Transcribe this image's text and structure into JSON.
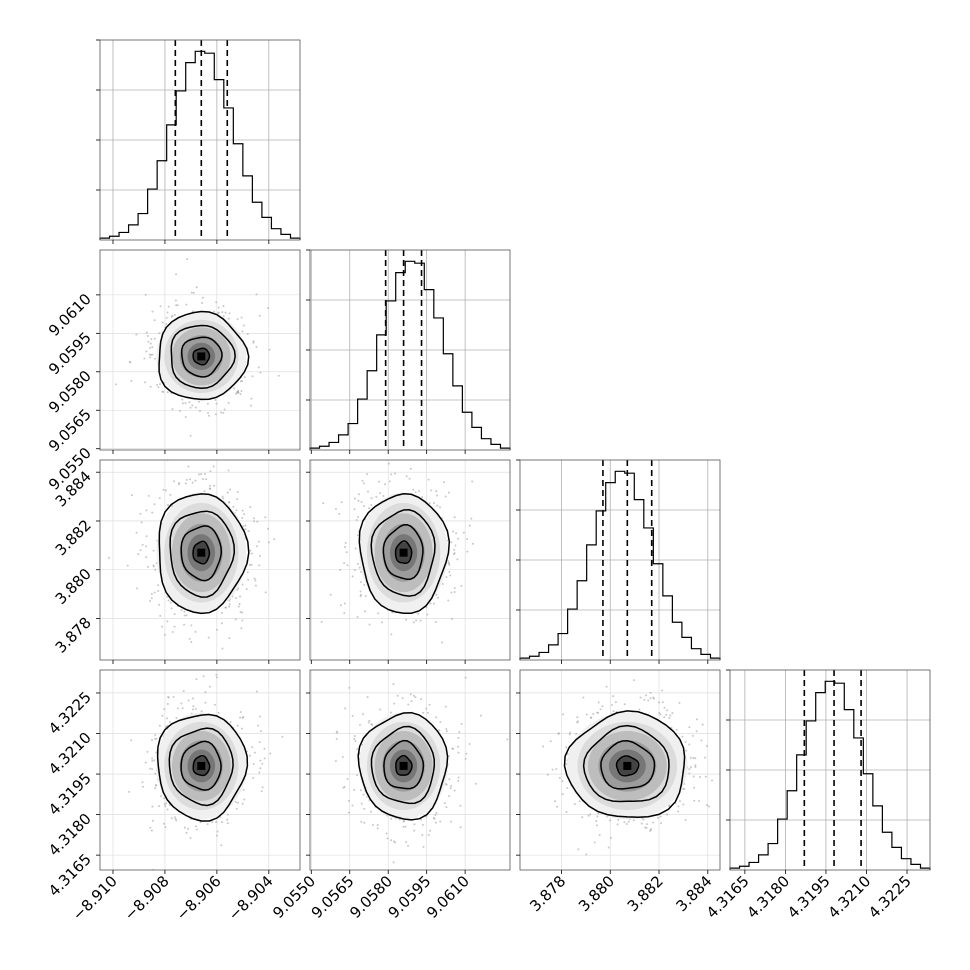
{
  "chart_data": {
    "type": "corner",
    "description_labels": "corner plot of 4 parameters; no axis titles printed",
    "grid": true,
    "params": [
      {
        "range": [
          -8.9105,
          -8.9028
        ],
        "ticks": [
          -8.91,
          -8.908,
          -8.906,
          -8.904
        ],
        "tick_labels": [
          "−8.910",
          "−8.908",
          "−8.906",
          "−8.904"
        ],
        "quantiles": [
          -8.9076,
          -8.9066,
          -8.9056
        ],
        "mean": -8.9066,
        "sd": 0.0007
      },
      {
        "range": [
          9.05495,
          9.06275
        ],
        "ticks": [
          9.055,
          9.0565,
          9.058,
          9.0595,
          9.061
        ],
        "tick_labels": [
          "9.0550",
          "9.0565",
          "9.0580",
          "9.0595",
          "9.0610"
        ],
        "quantiles": [
          9.0579,
          9.0586,
          9.0593
        ],
        "mean": 9.0586,
        "sd": 0.0007
      },
      {
        "range": [
          3.8763,
          3.8845
        ],
        "ticks": [
          3.878,
          3.88,
          3.882,
          3.884
        ],
        "tick_labels": [
          "3.878",
          "3.880",
          "3.882",
          "3.884"
        ],
        "quantiles": [
          3.8797,
          3.8807,
          3.8817
        ],
        "mean": 3.8807,
        "sd": 0.001
      },
      {
        "range": [
          4.31595,
          4.32335
        ],
        "ticks": [
          4.3165,
          4.318,
          4.3195,
          4.321,
          4.3225
        ],
        "tick_labels": [
          "4.3165",
          "4.3180",
          "4.3195",
          "4.3210",
          "4.3225"
        ],
        "quantiles": [
          4.3187,
          4.3198,
          4.3208
        ],
        "mean": 4.3198,
        "sd": 0.0008
      }
    ],
    "histograms": [
      [
        0.01,
        0.02,
        0.04,
        0.08,
        0.14,
        0.27,
        0.42,
        0.61,
        0.79,
        0.94,
        1.0,
        0.99,
        0.85,
        0.7,
        0.51,
        0.34,
        0.2,
        0.12,
        0.06,
        0.03,
        0.01
      ],
      [
        0.01,
        0.02,
        0.04,
        0.08,
        0.14,
        0.27,
        0.42,
        0.61,
        0.79,
        0.94,
        1.0,
        0.99,
        0.85,
        0.7,
        0.51,
        0.34,
        0.2,
        0.12,
        0.06,
        0.03,
        0.01
      ],
      [
        0.01,
        0.02,
        0.04,
        0.08,
        0.14,
        0.27,
        0.42,
        0.61,
        0.79,
        0.94,
        1.0,
        0.99,
        0.85,
        0.7,
        0.51,
        0.34,
        0.2,
        0.12,
        0.06,
        0.03,
        0.01
      ],
      [
        0.01,
        0.02,
        0.04,
        0.08,
        0.14,
        0.27,
        0.42,
        0.61,
        0.79,
        0.94,
        1.0,
        0.99,
        0.85,
        0.7,
        0.51,
        0.34,
        0.2,
        0.12,
        0.06,
        0.03,
        0.01
      ]
    ],
    "hist_max": 1.0
  }
}
